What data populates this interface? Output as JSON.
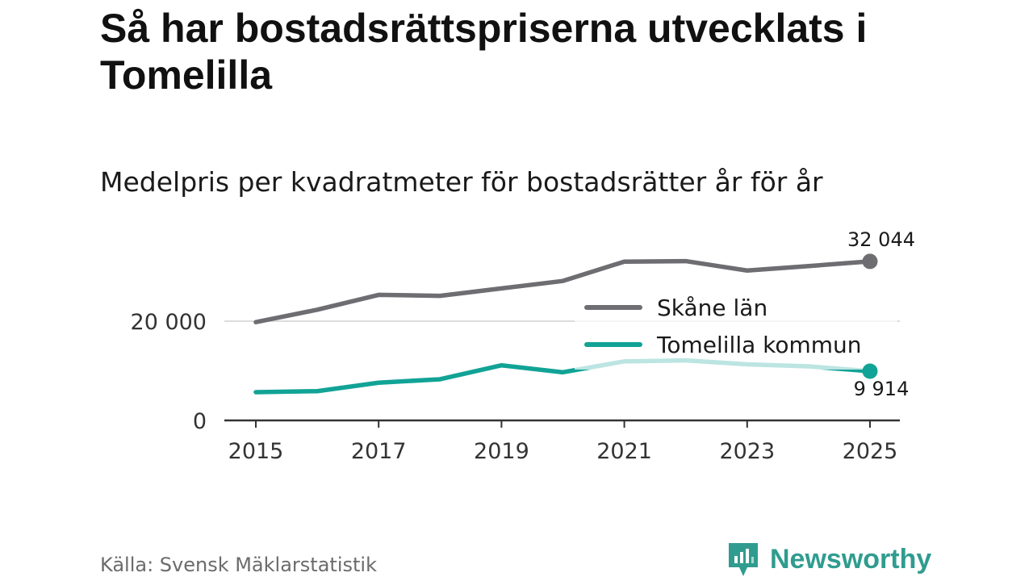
{
  "title": "Så har bostadsrättspriserna utvecklats i Tomelilla",
  "subtitle": "Medelpris per kvadratmeter för bostadsrätter år för år",
  "source": "Källa: Svensk Mäklarstatistik",
  "brand": {
    "name": "Newsworthy",
    "color": "#2f9c8f"
  },
  "chart_data": {
    "type": "line",
    "title": "Medelpris per kvadratmeter för bostadsrätter år för år",
    "xlabel": "",
    "ylabel": "",
    "x": [
      2015,
      2016,
      2017,
      2018,
      2019,
      2020,
      2021,
      2022,
      2023,
      2024,
      2025
    ],
    "x_ticks": [
      "2015",
      "2017",
      "2019",
      "2021",
      "2023",
      "2025"
    ],
    "x_range": [
      2015,
      2025
    ],
    "y_ticks": [
      {
        "value": 0,
        "label": "0"
      },
      {
        "value": 20000,
        "label": "20 000"
      }
    ],
    "ylim": [
      0,
      32000
    ],
    "legend_position": "right",
    "series": [
      {
        "name": "Skåne län",
        "color": "#6d6d72",
        "values": [
          19800,
          22300,
          25300,
          25100,
          26600,
          28100,
          32000,
          32100,
          30200,
          31100,
          32044
        ],
        "end_label": "32 044"
      },
      {
        "name": "Tomelilla kommun",
        "color": "#11a396",
        "values": [
          5700,
          5900,
          7600,
          8300,
          11100,
          9700,
          11900,
          12100,
          11300,
          10900,
          9914
        ],
        "end_label": "9 914"
      }
    ]
  }
}
